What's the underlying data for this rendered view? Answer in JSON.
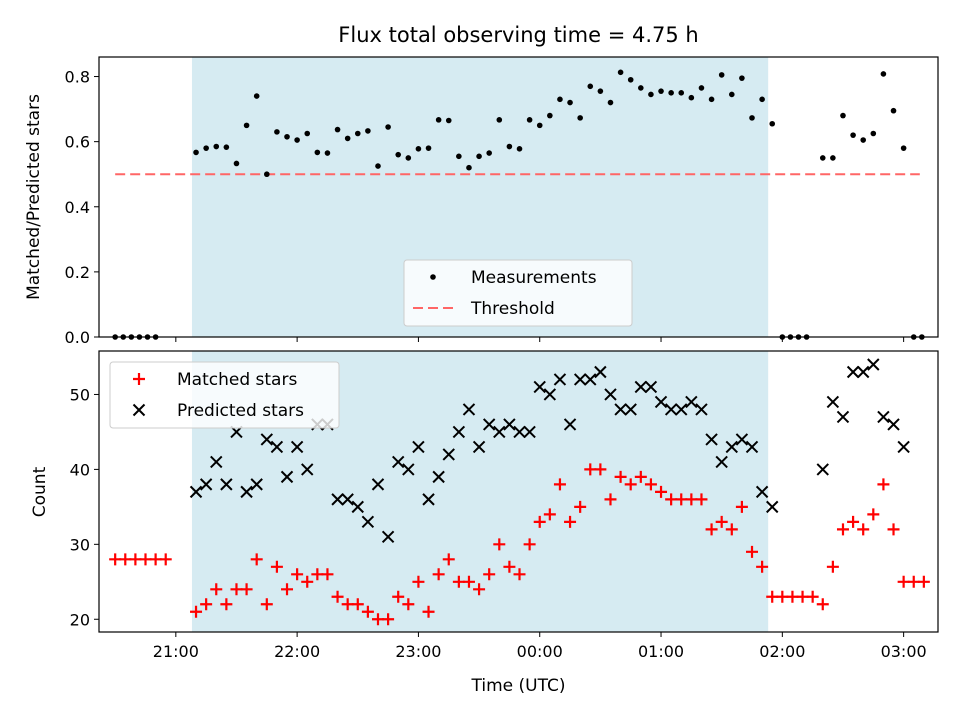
{
  "chart_data": [
    {
      "type": "scatter",
      "title": "Flux total observing time = 4.75 h",
      "xlabel": "",
      "ylabel": "Matched/Predicted stars",
      "ylim": [
        0,
        0.86
      ],
      "yticks": [
        "0.0",
        "0.2",
        "0.4",
        "0.6",
        "0.8"
      ],
      "highlight_span": {
        "start": "21:08",
        "end": "01:53",
        "color": "#add8e6"
      },
      "threshold": {
        "name": "Threshold",
        "value": 0.5,
        "x_start": "20:30",
        "x_end": "03:08",
        "color": "#ff6666",
        "style": "dashed"
      },
      "legend": {
        "placement": "lower center",
        "entries": [
          "Measurements",
          "Threshold"
        ]
      },
      "series": [
        {
          "name": "Measurements",
          "color": "#000000",
          "marker": "dot",
          "points": [
            [
              "20:30",
              0
            ],
            [
              "20:34",
              0
            ],
            [
              "20:38",
              0
            ],
            [
              "20:42",
              0
            ],
            [
              "20:46",
              0
            ],
            [
              "20:50",
              0
            ],
            [
              "21:10",
              0.567
            ],
            [
              "21:15",
              0.58
            ],
            [
              "21:20",
              0.585
            ],
            [
              "21:25",
              0.583
            ],
            [
              "21:30",
              0.533
            ],
            [
              "21:35",
              0.65
            ],
            [
              "21:40",
              0.74
            ],
            [
              "21:45",
              0.5
            ],
            [
              "21:50",
              0.63
            ],
            [
              "21:55",
              0.615
            ],
            [
              "22:00",
              0.605
            ],
            [
              "22:05",
              0.625
            ],
            [
              "22:10",
              0.567
            ],
            [
              "22:15",
              0.565
            ],
            [
              "22:20",
              0.637
            ],
            [
              "22:25",
              0.61
            ],
            [
              "22:30",
              0.625
            ],
            [
              "22:35",
              0.633
            ],
            [
              "22:40",
              0.525
            ],
            [
              "22:45",
              0.645
            ],
            [
              "22:50",
              0.56
            ],
            [
              "22:55",
              0.55
            ],
            [
              "23:00",
              0.578
            ],
            [
              "23:05",
              0.58
            ],
            [
              "23:10",
              0.667
            ],
            [
              "23:15",
              0.665
            ],
            [
              "23:20",
              0.555
            ],
            [
              "23:25",
              0.52
            ],
            [
              "23:30",
              0.555
            ],
            [
              "23:35",
              0.565
            ],
            [
              "23:40",
              0.667
            ],
            [
              "23:45",
              0.585
            ],
            [
              "23:50",
              0.578
            ],
            [
              "23:55",
              0.667
            ],
            [
              "00:00",
              0.65
            ],
            [
              "00:05",
              0.68
            ],
            [
              "00:10",
              0.73
            ],
            [
              "00:15",
              0.72
            ],
            [
              "00:20",
              0.673
            ],
            [
              "00:25",
              0.77
            ],
            [
              "00:30",
              0.755
            ],
            [
              "00:35",
              0.72
            ],
            [
              "00:40",
              0.813
            ],
            [
              "00:45",
              0.79
            ],
            [
              "00:50",
              0.765
            ],
            [
              "00:55",
              0.745
            ],
            [
              "01:00",
              0.755
            ],
            [
              "01:05",
              0.75
            ],
            [
              "01:10",
              0.75
            ],
            [
              "01:15",
              0.735
            ],
            [
              "01:20",
              0.765
            ],
            [
              "01:25",
              0.73
            ],
            [
              "01:30",
              0.805
            ],
            [
              "01:35",
              0.745
            ],
            [
              "01:40",
              0.795
            ],
            [
              "01:45",
              0.673
            ],
            [
              "01:50",
              0.73
            ],
            [
              "01:55",
              0.655
            ],
            [
              "02:00",
              0
            ],
            [
              "02:04",
              0
            ],
            [
              "02:08",
              0
            ],
            [
              "02:12",
              0
            ],
            [
              "02:20",
              0.55
            ],
            [
              "02:25",
              0.55
            ],
            [
              "02:30",
              0.68
            ],
            [
              "02:35",
              0.62
            ],
            [
              "02:40",
              0.605
            ],
            [
              "02:45",
              0.625
            ],
            [
              "02:50",
              0.808
            ],
            [
              "02:55",
              0.695
            ],
            [
              "03:00",
              0.58
            ],
            [
              "03:05",
              0
            ],
            [
              "03:09",
              0
            ]
          ]
        }
      ]
    },
    {
      "type": "scatter",
      "xlabel": "Time (UTC)",
      "ylabel": "Count",
      "ylim": [
        18.3,
        55.8
      ],
      "yticks": [
        "20",
        "30",
        "40",
        "50"
      ],
      "xticks": [
        "21:00",
        "22:00",
        "23:00",
        "00:00",
        "01:00",
        "02:00",
        "03:00"
      ],
      "highlight_span": {
        "start": "21:08",
        "end": "01:53",
        "color": "#add8e6"
      },
      "legend": {
        "placement": "upper left",
        "entries": [
          "Matched stars",
          "Predicted stars"
        ]
      },
      "series": [
        {
          "name": "Matched stars",
          "color": "#ff0000",
          "marker": "plus",
          "points": [
            [
              "20:30",
              28
            ],
            [
              "20:35",
              28
            ],
            [
              "20:40",
              28
            ],
            [
              "20:45",
              28
            ],
            [
              "20:50",
              28
            ],
            [
              "20:55",
              28
            ],
            [
              "21:10",
              21
            ],
            [
              "21:15",
              22
            ],
            [
              "21:20",
              24
            ],
            [
              "21:25",
              22
            ],
            [
              "21:30",
              24
            ],
            [
              "21:35",
              24
            ],
            [
              "21:40",
              28
            ],
            [
              "21:45",
              22
            ],
            [
              "21:50",
              27
            ],
            [
              "21:55",
              24
            ],
            [
              "22:00",
              26
            ],
            [
              "22:05",
              25
            ],
            [
              "22:10",
              26
            ],
            [
              "22:15",
              26
            ],
            [
              "22:20",
              23
            ],
            [
              "22:25",
              22
            ],
            [
              "22:30",
              22
            ],
            [
              "22:35",
              21
            ],
            [
              "22:40",
              20
            ],
            [
              "22:45",
              20
            ],
            [
              "22:50",
              23
            ],
            [
              "22:55",
              22
            ],
            [
              "23:00",
              25
            ],
            [
              "23:05",
              21
            ],
            [
              "23:10",
              26
            ],
            [
              "23:15",
              28
            ],
            [
              "23:20",
              25
            ],
            [
              "23:25",
              25
            ],
            [
              "23:30",
              24
            ],
            [
              "23:35",
              26
            ],
            [
              "23:40",
              30
            ],
            [
              "23:45",
              27
            ],
            [
              "23:50",
              26
            ],
            [
              "23:55",
              30
            ],
            [
              "00:00",
              33
            ],
            [
              "00:05",
              34
            ],
            [
              "00:10",
              38
            ],
            [
              "00:15",
              33
            ],
            [
              "00:20",
              35
            ],
            [
              "00:25",
              40
            ],
            [
              "00:30",
              40
            ],
            [
              "00:35",
              36
            ],
            [
              "00:40",
              39
            ],
            [
              "00:45",
              38
            ],
            [
              "00:50",
              39
            ],
            [
              "00:55",
              38
            ],
            [
              "01:00",
              37
            ],
            [
              "01:05",
              36
            ],
            [
              "01:10",
              36
            ],
            [
              "01:15",
              36
            ],
            [
              "01:20",
              36
            ],
            [
              "01:25",
              32
            ],
            [
              "01:30",
              33
            ],
            [
              "01:35",
              32
            ],
            [
              "01:40",
              35
            ],
            [
              "01:45",
              29
            ],
            [
              "01:50",
              27
            ],
            [
              "01:55",
              23
            ],
            [
              "02:00",
              23
            ],
            [
              "02:05",
              23
            ],
            [
              "02:10",
              23
            ],
            [
              "02:15",
              23
            ],
            [
              "02:20",
              22
            ],
            [
              "02:25",
              27
            ],
            [
              "02:30",
              32
            ],
            [
              "02:35",
              33
            ],
            [
              "02:40",
              32
            ],
            [
              "02:45",
              34
            ],
            [
              "02:50",
              38
            ],
            [
              "02:55",
              32
            ],
            [
              "03:00",
              25
            ],
            [
              "03:05",
              25
            ],
            [
              "03:10",
              25
            ]
          ]
        },
        {
          "name": "Predicted stars",
          "color": "#000000",
          "marker": "x",
          "points": [
            [
              "21:10",
              37
            ],
            [
              "21:15",
              38
            ],
            [
              "21:20",
              41
            ],
            [
              "21:25",
              38
            ],
            [
              "21:30",
              45
            ],
            [
              "21:35",
              37
            ],
            [
              "21:40",
              38
            ],
            [
              "21:45",
              44
            ],
            [
              "21:50",
              43
            ],
            [
              "21:55",
              39
            ],
            [
              "22:00",
              43
            ],
            [
              "22:05",
              40
            ],
            [
              "22:10",
              46
            ],
            [
              "22:15",
              46
            ],
            [
              "22:20",
              36
            ],
            [
              "22:25",
              36
            ],
            [
              "22:30",
              35
            ],
            [
              "22:35",
              33
            ],
            [
              "22:40",
              38
            ],
            [
              "22:45",
              31
            ],
            [
              "22:50",
              41
            ],
            [
              "22:55",
              40
            ],
            [
              "23:00",
              43
            ],
            [
              "23:05",
              36
            ],
            [
              "23:10",
              39
            ],
            [
              "23:15",
              42
            ],
            [
              "23:20",
              45
            ],
            [
              "23:25",
              48
            ],
            [
              "23:30",
              43
            ],
            [
              "23:35",
              46
            ],
            [
              "23:40",
              45
            ],
            [
              "23:45",
              46
            ],
            [
              "23:50",
              45
            ],
            [
              "23:55",
              45
            ],
            [
              "00:00",
              51
            ],
            [
              "00:05",
              50
            ],
            [
              "00:10",
              52
            ],
            [
              "00:15",
              46
            ],
            [
              "00:20",
              52
            ],
            [
              "00:25",
              52
            ],
            [
              "00:30",
              53
            ],
            [
              "00:35",
              50
            ],
            [
              "00:40",
              48
            ],
            [
              "00:45",
              48
            ],
            [
              "00:50",
              51
            ],
            [
              "00:55",
              51
            ],
            [
              "01:00",
              49
            ],
            [
              "01:05",
              48
            ],
            [
              "01:10",
              48
            ],
            [
              "01:15",
              49
            ],
            [
              "01:20",
              48
            ],
            [
              "01:25",
              44
            ],
            [
              "01:30",
              41
            ],
            [
              "01:35",
              43
            ],
            [
              "01:40",
              44
            ],
            [
              "01:45",
              43
            ],
            [
              "01:50",
              37
            ],
            [
              "01:55",
              35
            ],
            [
              "02:20",
              40
            ],
            [
              "02:25",
              49
            ],
            [
              "02:30",
              47
            ],
            [
              "02:35",
              53
            ],
            [
              "02:40",
              53
            ],
            [
              "02:45",
              54
            ],
            [
              "02:50",
              47
            ],
            [
              "02:55",
              46
            ],
            [
              "03:00",
              43
            ]
          ]
        }
      ]
    }
  ]
}
